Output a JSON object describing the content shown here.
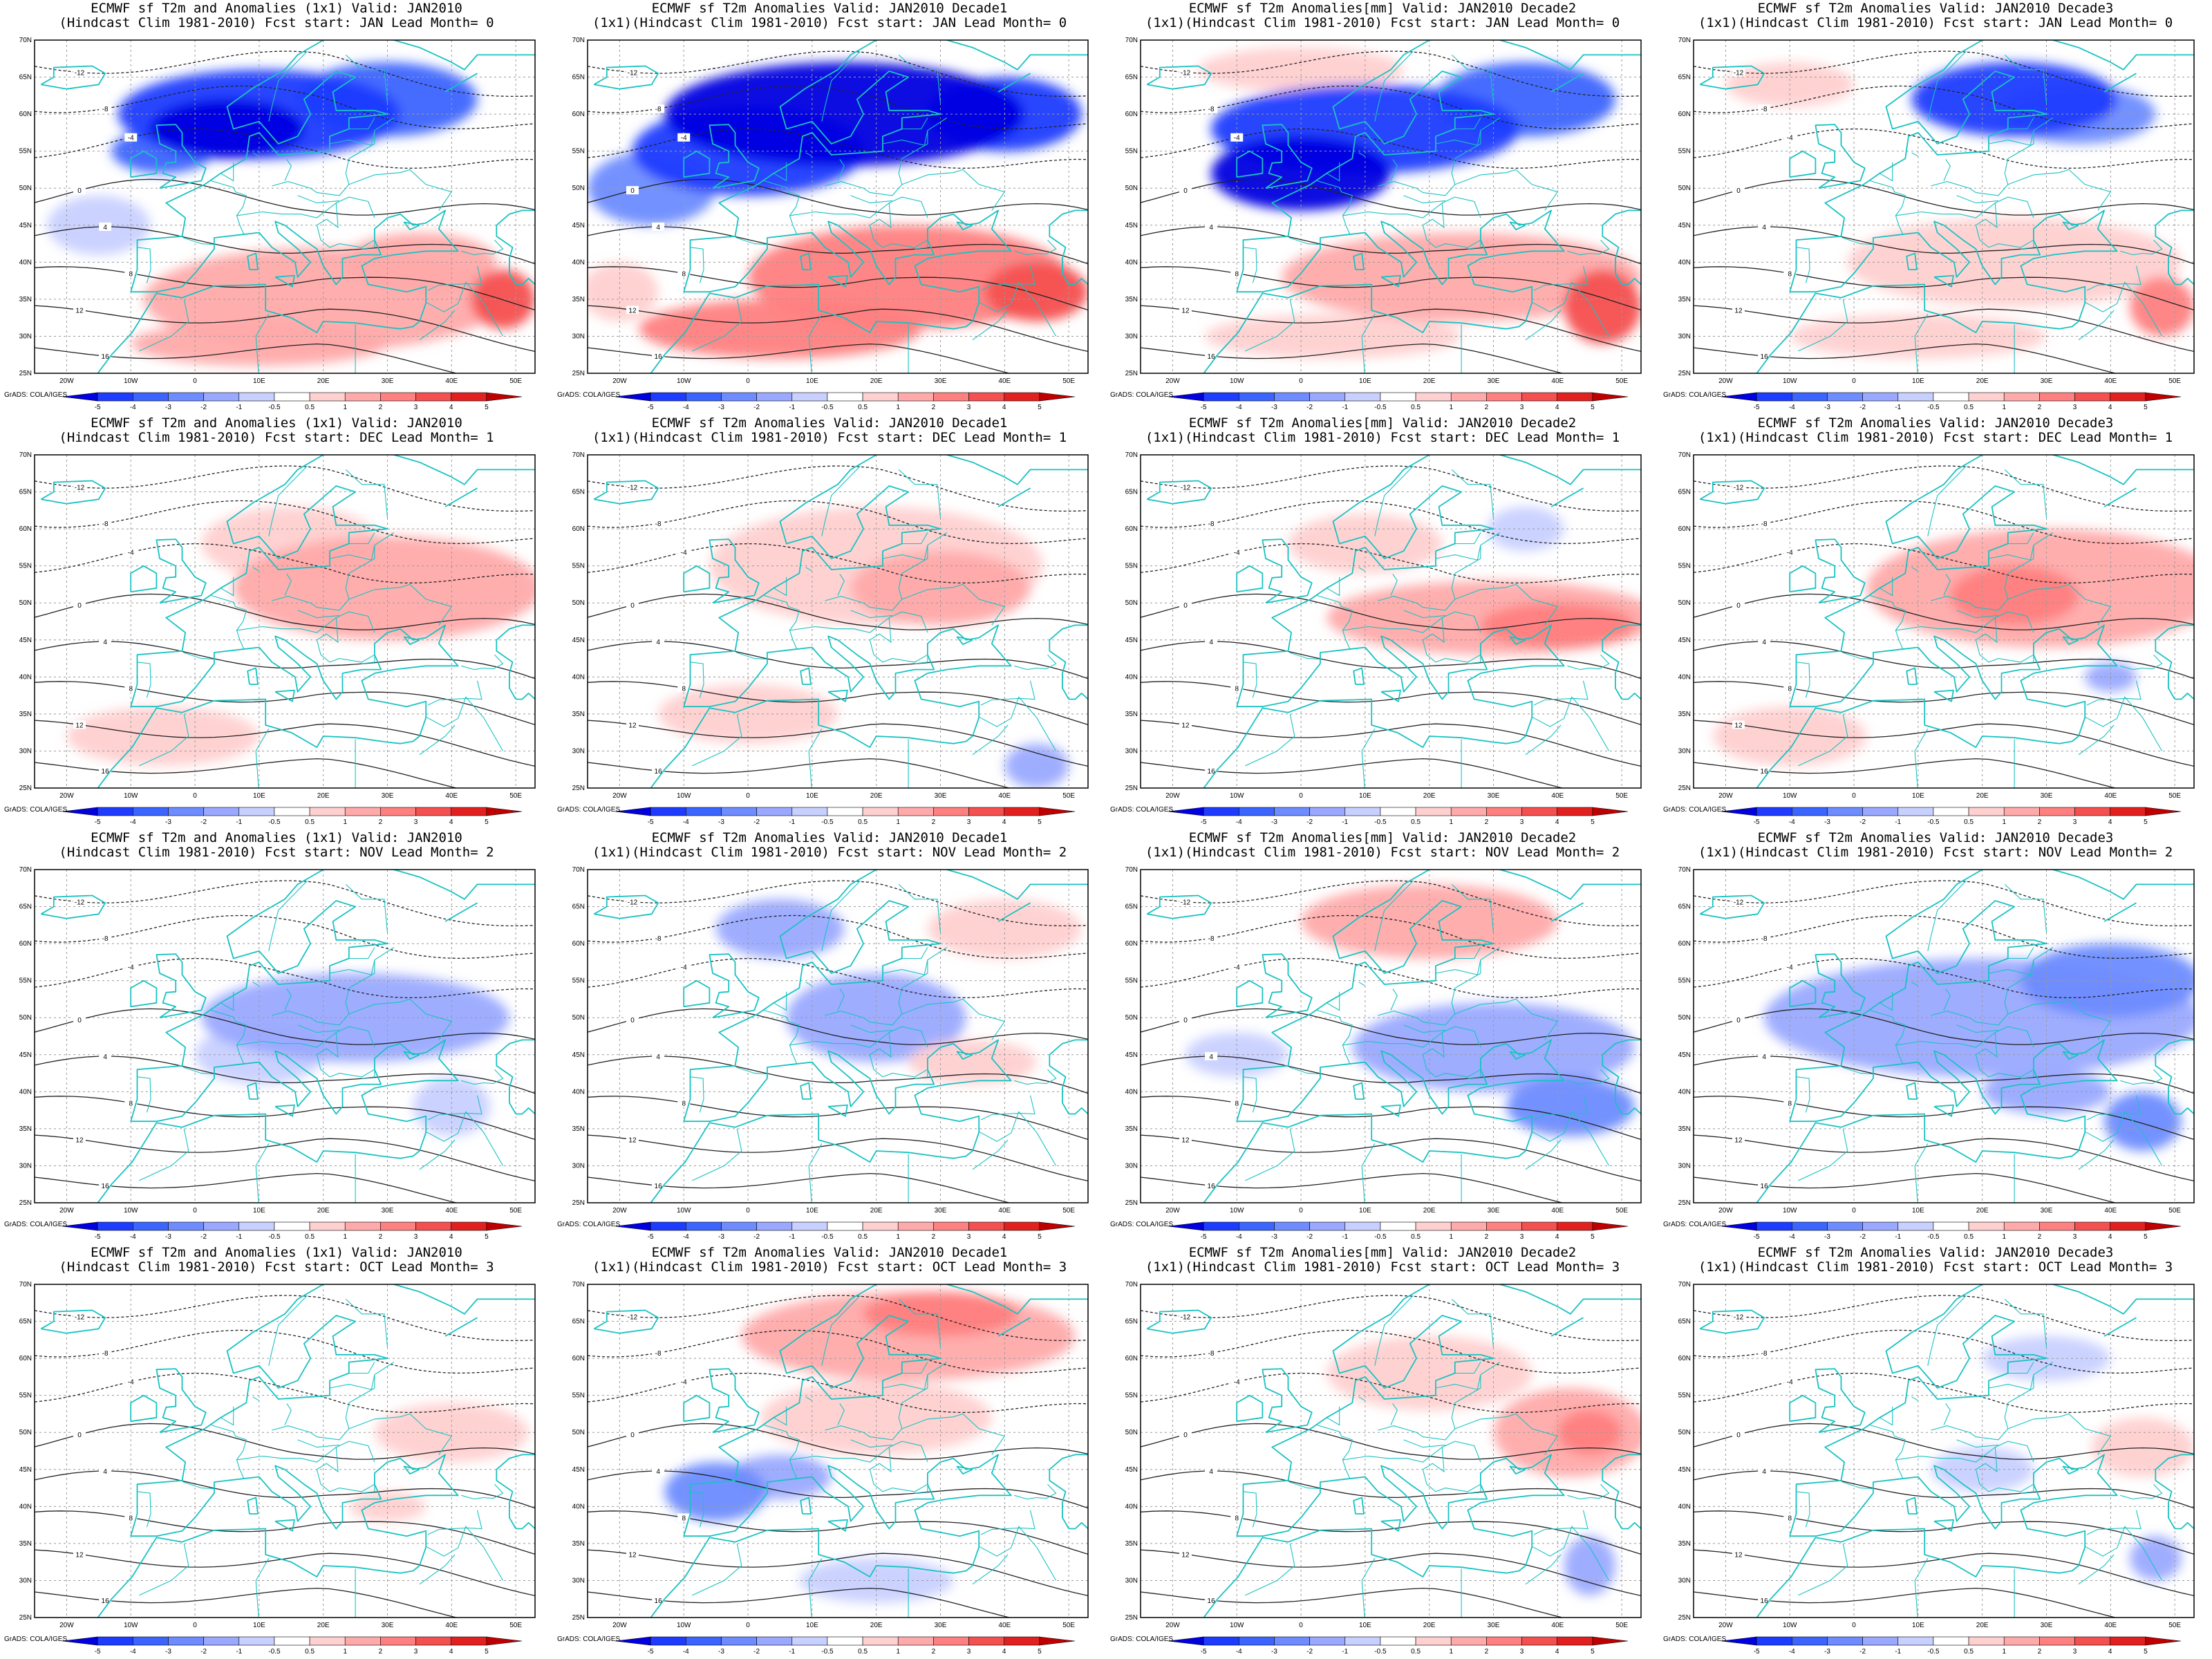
{
  "figure": {
    "colorbar": {
      "ticks": [
        "-5",
        "-4",
        "-3",
        "-2",
        "-1",
        "-0.5",
        "0.5",
        "1",
        "2",
        "3",
        "4",
        "5"
      ],
      "colors": [
        "#0000e0",
        "#1e3cff",
        "#3c64ff",
        "#6e8cff",
        "#9aa9ff",
        "#c8d0ff",
        "#ffffff",
        "#ffd0d0",
        "#ffaaaa",
        "#ff8080",
        "#f55050",
        "#e32020",
        "#c00000"
      ]
    },
    "map": {
      "lon_labels": [
        "20W",
        "10W",
        "0",
        "10E",
        "20E",
        "30E",
        "40E",
        "50E"
      ],
      "lat_labels": [
        "70N",
        "65N",
        "60N",
        "55N",
        "50N",
        "45N",
        "40N",
        "35N",
        "30N",
        "25N"
      ],
      "lon_range": [
        -25,
        53
      ],
      "lat_range": [
        25,
        70
      ],
      "contour_labels": [
        "-12",
        "-8",
        "-4",
        "0",
        "4",
        "8",
        "12",
        "16"
      ]
    },
    "credit": "GrADS: COLA/IGES",
    "panels": [
      {
        "title1": "ECMWF sf T2m and Anomalies (1x1) Valid: JAN2010",
        "title2": "(Hindcast Clim 1981-2010) Fcst start: JAN  Lead Month= 0",
        "blobs": [
          {
            "lon": 10,
            "lat": 60,
            "rx": 22,
            "ry": 6,
            "v": -4
          },
          {
            "lon": 5,
            "lat": 58,
            "rx": 12,
            "ry": 4,
            "v": -5
          },
          {
            "lon": -5,
            "lat": 55,
            "rx": 8,
            "ry": 3,
            "v": -3
          },
          {
            "lon": 30,
            "lat": 62,
            "rx": 14,
            "ry": 5,
            "v": -3
          },
          {
            "lon": 20,
            "lat": 35,
            "rx": 28,
            "ry": 7,
            "v": 2
          },
          {
            "lon": 35,
            "lat": 40,
            "rx": 12,
            "ry": 4,
            "v": 2
          },
          {
            "lon": 48,
            "lat": 35,
            "rx": 5,
            "ry": 4,
            "v": 4
          },
          {
            "lon": 10,
            "lat": 29,
            "rx": 20,
            "ry": 3,
            "v": 2
          },
          {
            "lon": -15,
            "lat": 45,
            "rx": 8,
            "ry": 4,
            "v": -0.5
          }
        ]
      },
      {
        "title1": "ECMWF sf T2m Anomalies Valid: JAN2010 Decade1",
        "title2": "(1x1)(Hindcast Clim 1981-2010) Fcst start: JAN  Lead Month= 0",
        "blobs": [
          {
            "lon": 15,
            "lat": 60,
            "rx": 28,
            "ry": 7,
            "v": -5
          },
          {
            "lon": 0,
            "lat": 55,
            "rx": 18,
            "ry": 6,
            "v": -4
          },
          {
            "lon": -15,
            "lat": 50,
            "rx": 10,
            "ry": 5,
            "v": -2
          },
          {
            "lon": 40,
            "lat": 60,
            "rx": 12,
            "ry": 5,
            "v": -4
          },
          {
            "lon": 25,
            "lat": 38,
            "rx": 25,
            "ry": 7,
            "v": 3
          },
          {
            "lon": 5,
            "lat": 31,
            "rx": 22,
            "ry": 4,
            "v": 3
          },
          {
            "lon": 45,
            "lat": 36,
            "rx": 8,
            "ry": 4,
            "v": 4
          },
          {
            "lon": -20,
            "lat": 36,
            "rx": 6,
            "ry": 4,
            "v": 1
          }
        ]
      },
      {
        "title1": "ECMWF sf T2m Anomalies[mm] Valid: JAN2010 Decade2",
        "title2": "(1x1)(Hindcast Clim 1981-2010) Fcst start: JAN  Lead Month= 0",
        "blobs": [
          {
            "lon": 10,
            "lat": 58,
            "rx": 24,
            "ry": 6,
            "v": -4
          },
          {
            "lon": 0,
            "lat": 52,
            "rx": 14,
            "ry": 5,
            "v": -5
          },
          {
            "lon": 35,
            "lat": 62,
            "rx": 14,
            "ry": 5,
            "v": -3
          },
          {
            "lon": 25,
            "lat": 38,
            "rx": 28,
            "ry": 6,
            "v": 2
          },
          {
            "lon": 47,
            "lat": 34,
            "rx": 6,
            "ry": 5,
            "v": 4
          },
          {
            "lon": 0,
            "lat": 66,
            "rx": 16,
            "ry": 3,
            "v": 1
          },
          {
            "lon": 5,
            "lat": 30,
            "rx": 20,
            "ry": 3,
            "v": 1
          }
        ]
      },
      {
        "title1": "ECMWF sf T2m Anomalies Valid: JAN2010 Decade3",
        "title2": "(1x1)(Hindcast Clim 1981-2010) Fcst start: JAN  Lead Month= 0",
        "blobs": [
          {
            "lon": 25,
            "lat": 62,
            "rx": 16,
            "ry": 5,
            "v": -4
          },
          {
            "lon": 35,
            "lat": 60,
            "rx": 12,
            "ry": 4,
            "v": -2
          },
          {
            "lon": 25,
            "lat": 40,
            "rx": 26,
            "ry": 6,
            "v": 1
          },
          {
            "lon": 48,
            "lat": 34,
            "rx": 5,
            "ry": 4,
            "v": 3
          },
          {
            "lon": -10,
            "lat": 64,
            "rx": 10,
            "ry": 3,
            "v": 1
          },
          {
            "lon": 10,
            "lat": 30,
            "rx": 20,
            "ry": 3,
            "v": 1
          }
        ]
      },
      {
        "title1": "ECMWF sf T2m and Anomalies (1x1) Valid: JAN2010",
        "title2": "(Hindcast Clim 1981-2010) Fcst start: DEC  Lead Month= 1",
        "blobs": [
          {
            "lon": 30,
            "lat": 52,
            "rx": 24,
            "ry": 7,
            "v": 2
          },
          {
            "lon": 15,
            "lat": 58,
            "rx": 14,
            "ry": 5,
            "v": 1
          },
          {
            "lon": -5,
            "lat": 32,
            "rx": 15,
            "ry": 4,
            "v": 1
          }
        ]
      },
      {
        "title1": "ECMWF sf T2m Anomalies Valid: JAN2010 Decade1",
        "title2": "(1x1)(Hindcast Clim 1981-2010) Fcst start: DEC  Lead Month= 1",
        "blobs": [
          {
            "lon": 20,
            "lat": 55,
            "rx": 26,
            "ry": 8,
            "v": 1
          },
          {
            "lon": 30,
            "lat": 52,
            "rx": 14,
            "ry": 5,
            "v": 2
          },
          {
            "lon": 0,
            "lat": 35,
            "rx": 14,
            "ry": 4,
            "v": 1
          },
          {
            "lon": 45,
            "lat": 28,
            "rx": 5,
            "ry": 3,
            "v": -1
          }
        ]
      },
      {
        "title1": "ECMWF sf T2m Anomalies[mm] Valid: JAN2010 Decade2",
        "title2": "(1x1)(Hindcast Clim 1981-2010) Fcst start: DEC  Lead Month= 1",
        "blobs": [
          {
            "lon": 30,
            "lat": 48,
            "rx": 26,
            "ry": 5,
            "v": 2
          },
          {
            "lon": 40,
            "lat": 47,
            "rx": 12,
            "ry": 3,
            "v": 3
          },
          {
            "lon": 10,
            "lat": 58,
            "rx": 12,
            "ry": 4,
            "v": 1
          },
          {
            "lon": 35,
            "lat": 60,
            "rx": 6,
            "ry": 3,
            "v": -0.5
          }
        ]
      },
      {
        "title1": "ECMWF sf T2m Anomalies Valid: JAN2010 Decade3",
        "title2": "(1x1)(Hindcast Clim 1981-2010) Fcst start: DEC  Lead Month= 1",
        "blobs": [
          {
            "lon": 30,
            "lat": 52,
            "rx": 28,
            "ry": 8,
            "v": 2
          },
          {
            "lon": 25,
            "lat": 51,
            "rx": 10,
            "ry": 4,
            "v": 3
          },
          {
            "lon": -10,
            "lat": 32,
            "rx": 12,
            "ry": 4,
            "v": 1
          },
          {
            "lon": 40,
            "lat": 40,
            "rx": 4,
            "ry": 2,
            "v": -1
          }
        ]
      },
      {
        "title1": "ECMWF sf T2m and Anomalies (1x1) Valid: JAN2010",
        "title2": "(Hindcast Clim 1981-2010) Fcst start: NOV  Lead Month= 2",
        "blobs": [
          {
            "lon": 25,
            "lat": 50,
            "rx": 24,
            "ry": 6,
            "v": -1
          },
          {
            "lon": 10,
            "lat": 45,
            "rx": 10,
            "ry": 4,
            "v": -0.5
          },
          {
            "lon": 40,
            "lat": 38,
            "rx": 6,
            "ry": 4,
            "v": -0.5
          }
        ]
      },
      {
        "title1": "ECMWF sf T2m Anomalies Valid: JAN2010 Decade1",
        "title2": "(1x1)(Hindcast Clim 1981-2010) Fcst start: NOV  Lead Month= 2",
        "blobs": [
          {
            "lon": 20,
            "lat": 50,
            "rx": 14,
            "ry": 6,
            "v": -1
          },
          {
            "lon": 5,
            "lat": 62,
            "rx": 10,
            "ry": 4,
            "v": -1
          },
          {
            "lon": 40,
            "lat": 62,
            "rx": 12,
            "ry": 4,
            "v": 1
          },
          {
            "lon": 35,
            "lat": 44,
            "rx": 10,
            "ry": 3,
            "v": 1
          }
        ]
      },
      {
        "title1": "ECMWF sf T2m Anomalies[mm] Valid: JAN2010 Decade2",
        "title2": "(1x1)(Hindcast Clim 1981-2010) Fcst start: NOV  Lead Month= 2",
        "blobs": [
          {
            "lon": 20,
            "lat": 63,
            "rx": 20,
            "ry": 5,
            "v": 2
          },
          {
            "lon": 30,
            "lat": 46,
            "rx": 22,
            "ry": 6,
            "v": -1
          },
          {
            "lon": 42,
            "lat": 38,
            "rx": 10,
            "ry": 4,
            "v": -2
          },
          {
            "lon": -10,
            "lat": 45,
            "rx": 8,
            "ry": 3,
            "v": -0.5
          }
        ]
      },
      {
        "title1": "ECMWF sf T2m Anomalies Valid: JAN2010 Decade3",
        "title2": "(1x1)(Hindcast Clim 1981-2010) Fcst start: NOV  Lead Month= 2",
        "blobs": [
          {
            "lon": 20,
            "lat": 50,
            "rx": 34,
            "ry": 8,
            "v": -1
          },
          {
            "lon": 40,
            "lat": 55,
            "rx": 14,
            "ry": 5,
            "v": -2
          },
          {
            "lon": 45,
            "lat": 36,
            "rx": 6,
            "ry": 4,
            "v": -2
          },
          {
            "lon": 30,
            "lat": 40,
            "rx": 10,
            "ry": 3,
            "v": -1
          }
        ]
      },
      {
        "title1": "ECMWF sf T2m and Anomalies (1x1) Valid: JAN2010",
        "title2": "(Hindcast Clim 1981-2010) Fcst start: OCT  Lead Month= 3",
        "blobs": [
          {
            "lon": 40,
            "lat": 50,
            "rx": 12,
            "ry": 4,
            "v": 1
          },
          {
            "lon": 30,
            "lat": 40,
            "rx": 6,
            "ry": 2,
            "v": 0.7
          }
        ]
      },
      {
        "title1": "ECMWF sf T2m Anomalies Valid: JAN2010 Decade1",
        "title2": "(1x1)(Hindcast Clim 1981-2010) Fcst start: OCT  Lead Month= 3",
        "blobs": [
          {
            "lon": 25,
            "lat": 63,
            "rx": 26,
            "ry": 6,
            "v": 2
          },
          {
            "lon": 30,
            "lat": 66,
            "rx": 12,
            "ry": 3,
            "v": 3
          },
          {
            "lon": -5,
            "lat": 42,
            "rx": 8,
            "ry": 4,
            "v": -2
          },
          {
            "lon": 5,
            "lat": 44,
            "rx": 8,
            "ry": 3,
            "v": -1
          },
          {
            "lon": 20,
            "lat": 52,
            "rx": 18,
            "ry": 5,
            "v": 1
          },
          {
            "lon": 20,
            "lat": 30,
            "rx": 12,
            "ry": 3,
            "v": -0.5
          }
        ]
      },
      {
        "title1": "ECMWF sf T2m Anomalies[mm] Valid: JAN2010 Decade2",
        "title2": "(1x1)(Hindcast Clim 1981-2010) Fcst start: OCT  Lead Month= 3",
        "blobs": [
          {
            "lon": 42,
            "lat": 50,
            "rx": 12,
            "ry": 6,
            "v": 2
          },
          {
            "lon": 45,
            "lat": 50,
            "rx": 5,
            "ry": 3,
            "v": 3
          },
          {
            "lon": 20,
            "lat": 58,
            "rx": 16,
            "ry": 5,
            "v": 1
          },
          {
            "lon": 45,
            "lat": 32,
            "rx": 4,
            "ry": 4,
            "v": -1
          }
        ]
      },
      {
        "title1": "ECMWF sf T2m Anomalies Valid: JAN2010 Decade3",
        "title2": "(1x1)(Hindcast Clim 1981-2010) Fcst start: OCT  Lead Month= 3",
        "blobs": [
          {
            "lon": 45,
            "lat": 48,
            "rx": 8,
            "ry": 4,
            "v": 1
          },
          {
            "lon": 30,
            "lat": 60,
            "rx": 10,
            "ry": 3,
            "v": -0.5
          },
          {
            "lon": 47,
            "lat": 33,
            "rx": 4,
            "ry": 3,
            "v": -1
          },
          {
            "lon": 20,
            "lat": 45,
            "rx": 8,
            "ry": 3,
            "v": -0.5
          }
        ]
      }
    ]
  }
}
